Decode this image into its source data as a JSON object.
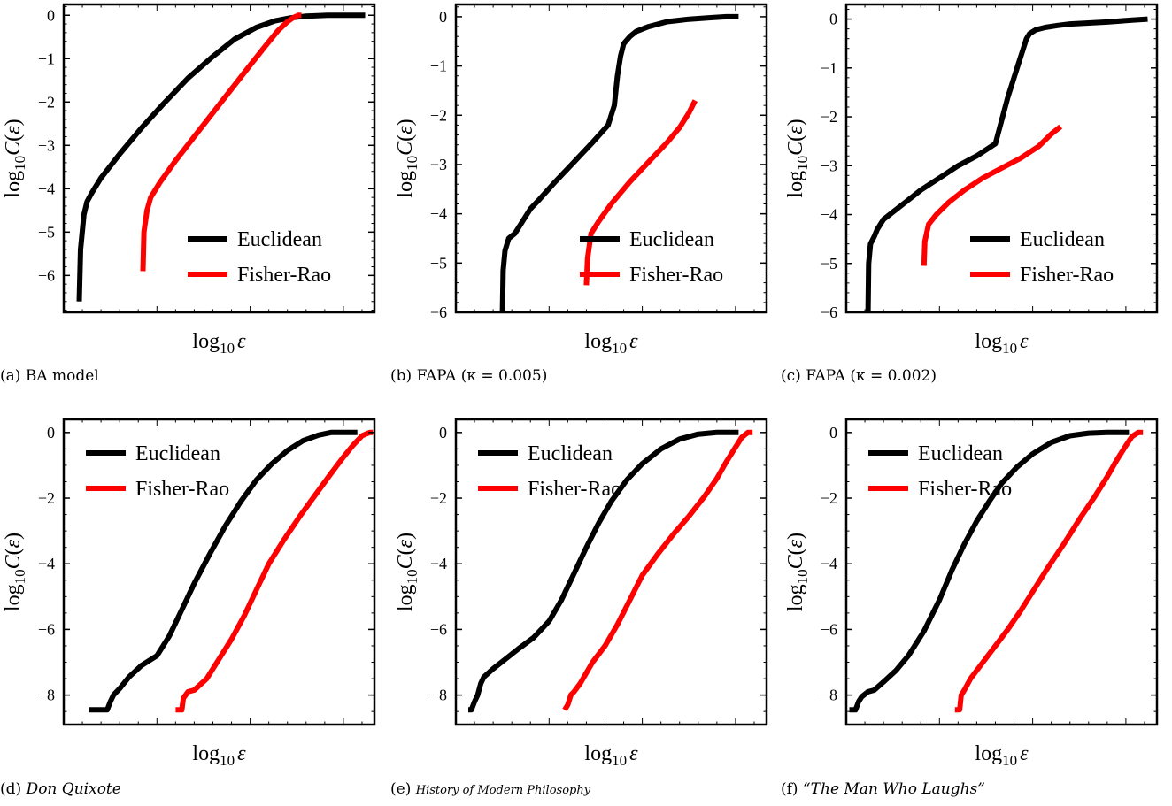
{
  "figure": {
    "captions": [
      {
        "prefix": "(a) ",
        "text": "BA model",
        "italic": false,
        "small": false
      },
      {
        "prefix": "(b) ",
        "text": "FAPA (κ = 0.005)",
        "italic": false,
        "small": false
      },
      {
        "prefix": "(c) ",
        "text": "FAPA (κ = 0.002)",
        "italic": false,
        "small": false
      },
      {
        "prefix": "(d) ",
        "text": "Don Quixote",
        "italic": true,
        "small": false
      },
      {
        "prefix": "(e) ",
        "text": "History of Modern Philosophy",
        "italic": true,
        "small": true
      },
      {
        "prefix": "(f) ",
        "text": "“The Man Who Laughs”",
        "italic": true,
        "small": false
      }
    ]
  },
  "colors": {
    "euclidean": "#000000",
    "fisher_rao": "#ff0000"
  },
  "chart_data": [
    {
      "type": "line",
      "xlabel": "log₁₀ ε",
      "ylabel": "log₁₀ C(ε)",
      "x_ticks_labeled": false,
      "xlim": [
        0,
        100
      ],
      "ylim": [
        -6.85,
        0.25
      ],
      "y_ticks": [
        0,
        -1,
        -2,
        -3,
        -4,
        -5,
        -6
      ],
      "y_tick_labels": [
        "0",
        "−1",
        "−2",
        "−3",
        "−4",
        "−5",
        "−6"
      ],
      "legend": "bottom-right",
      "series": [
        {
          "name": "Euclidean",
          "color": "#000000",
          "x": [
            5,
            5.4,
            6.5,
            7.5,
            9,
            12,
            18,
            25,
            32,
            40,
            48,
            55,
            62,
            68,
            73,
            78,
            85,
            92,
            97
          ],
          "y": [
            -6.6,
            -5.4,
            -4.6,
            -4.3,
            -4.1,
            -3.75,
            -3.2,
            -2.6,
            -2.05,
            -1.45,
            -0.95,
            -0.55,
            -0.28,
            -0.13,
            -0.06,
            -0.02,
            0,
            0,
            0
          ]
        },
        {
          "name": "Fisher-Rao",
          "color": "#ff0000",
          "x": [
            25.5,
            25.8,
            26.8,
            28,
            31,
            36,
            42,
            48,
            54,
            60,
            65,
            69,
            72,
            74,
            75.5,
            76.5
          ],
          "y": [
            -5.9,
            -5.0,
            -4.5,
            -4.2,
            -3.85,
            -3.35,
            -2.8,
            -2.25,
            -1.7,
            -1.15,
            -0.7,
            -0.35,
            -0.15,
            -0.05,
            0,
            0
          ]
        }
      ]
    },
    {
      "type": "line",
      "xlabel": "log₁₀ ε",
      "ylabel": "log₁₀ C(ε)",
      "x_ticks_labeled": false,
      "xlim": [
        0,
        100
      ],
      "ylim": [
        -6.0,
        0.25
      ],
      "y_ticks": [
        0,
        -1,
        -2,
        -3,
        -4,
        -5,
        -6
      ],
      "y_tick_labels": [
        "0",
        "−1",
        "−2",
        "−3",
        "−4",
        "−5",
        "−6"
      ],
      "legend": "bottom-right",
      "series": [
        {
          "name": "Euclidean",
          "color": "#000000",
          "x": [
            15,
            15.2,
            15.8,
            17,
            19,
            22,
            24,
            27,
            32,
            38,
            44,
            49,
            51,
            52,
            53,
            54,
            56,
            58,
            62,
            68,
            75,
            82,
            87,
            91
          ],
          "y": [
            -6.0,
            -5.15,
            -4.75,
            -4.5,
            -4.4,
            -4.1,
            -3.9,
            -3.7,
            -3.35,
            -2.95,
            -2.55,
            -2.2,
            -1.8,
            -1.2,
            -0.8,
            -0.55,
            -0.4,
            -0.3,
            -0.2,
            -0.1,
            -0.05,
            -0.02,
            0,
            0
          ]
        },
        {
          "name": "Fisher-Rao",
          "color": "#ff0000",
          "x": [
            42,
            42.4,
            43.5,
            46,
            50,
            56,
            62,
            68,
            72,
            75,
            77
          ],
          "y": [
            -5.45,
            -4.9,
            -4.4,
            -4.15,
            -3.8,
            -3.35,
            -2.95,
            -2.55,
            -2.25,
            -1.95,
            -1.7
          ]
        }
      ]
    },
    {
      "type": "line",
      "xlabel": "log₁₀ ε",
      "ylabel": "log₁₀ C(ε)",
      "x_ticks_labeled": false,
      "xlim": [
        0,
        100
      ],
      "ylim": [
        -6.0,
        0.3
      ],
      "y_ticks": [
        0,
        -1,
        -2,
        -3,
        -4,
        -5,
        -6
      ],
      "y_tick_labels": [
        "0",
        "−1",
        "−2",
        "−3",
        "−4",
        "−5",
        "−6"
      ],
      "legend": "bottom-right",
      "series": [
        {
          "name": "Euclidean",
          "color": "#000000",
          "x": [
            7,
            7.2,
            7.8,
            9,
            10,
            12,
            15,
            19,
            24,
            30,
            36,
            42,
            48,
            52,
            55,
            57,
            58,
            59,
            61,
            64,
            68,
            72,
            78,
            84,
            92,
            97
          ],
          "y": [
            -6.0,
            -5.0,
            -4.6,
            -4.45,
            -4.3,
            -4.1,
            -3.95,
            -3.75,
            -3.5,
            -3.25,
            -3.0,
            -2.8,
            -2.55,
            -1.6,
            -1.0,
            -0.6,
            -0.4,
            -0.3,
            -0.22,
            -0.17,
            -0.13,
            -0.1,
            -0.08,
            -0.06,
            -0.02,
            0
          ]
        },
        {
          "name": "Fisher-Rao",
          "color": "#ff0000",
          "x": [
            25,
            25.3,
            26.5,
            29,
            33,
            38,
            44,
            50,
            56,
            62,
            66,
            69
          ],
          "y": [
            -5.05,
            -4.55,
            -4.2,
            -4.0,
            -3.75,
            -3.5,
            -3.25,
            -3.05,
            -2.85,
            -2.6,
            -2.35,
            -2.2
          ]
        }
      ]
    },
    {
      "type": "line",
      "xlabel": "log₁₀ ε",
      "ylabel": "log₁₀ C(ε)",
      "x_ticks_labeled": false,
      "xlim": [
        0,
        100
      ],
      "ylim": [
        -8.9,
        0.4
      ],
      "y_ticks": [
        0,
        -2,
        -4,
        -6,
        -8
      ],
      "y_tick_labels": [
        "0",
        "−2",
        "−4",
        "−6",
        "−8"
      ],
      "legend": "top-left",
      "series": [
        {
          "name": "Euclidean",
          "color": "#000000",
          "x": [
            8,
            14,
            15,
            16,
            18,
            21,
            25,
            30,
            34,
            38,
            42,
            47,
            52,
            57,
            62,
            67,
            72,
            77,
            82,
            86,
            89,
            92,
            94.5
          ],
          "y": [
            -8.45,
            -8.45,
            -8.2,
            -8.0,
            -7.8,
            -7.45,
            -7.1,
            -6.8,
            -6.2,
            -5.4,
            -4.6,
            -3.7,
            -2.85,
            -2.1,
            -1.45,
            -0.95,
            -0.55,
            -0.25,
            -0.08,
            0,
            0,
            0,
            0
          ]
        },
        {
          "name": "Fisher-Rao",
          "color": "#ff0000",
          "x": [
            36,
            38,
            38.5,
            40,
            42,
            46,
            50,
            54,
            58,
            62,
            66,
            71,
            76,
            81,
            86,
            90,
            93,
            96,
            98.5,
            99.5
          ],
          "y": [
            -8.45,
            -8.45,
            -8.1,
            -7.9,
            -7.85,
            -7.5,
            -6.9,
            -6.3,
            -5.6,
            -4.8,
            -4.0,
            -3.25,
            -2.55,
            -1.9,
            -1.25,
            -0.75,
            -0.4,
            -0.1,
            0,
            0
          ]
        }
      ]
    },
    {
      "type": "line",
      "xlabel": "log₁₀ ε",
      "ylabel": "log₁₀ C(ε)",
      "x_ticks_labeled": false,
      "xlim": [
        0,
        100
      ],
      "ylim": [
        -8.9,
        0.4
      ],
      "y_ticks": [
        0,
        -2,
        -4,
        -6,
        -8
      ],
      "y_tick_labels": [
        "0",
        "−2",
        "−4",
        "−6",
        "−8"
      ],
      "legend": "top-left",
      "series": [
        {
          "name": "Euclidean",
          "color": "#000000",
          "x": [
            4,
            5,
            6,
            7,
            8,
            9,
            12,
            16,
            20,
            25,
            30,
            34,
            38,
            42,
            46,
            50,
            55,
            60,
            66,
            72,
            78,
            84,
            88,
            91
          ],
          "y": [
            -8.45,
            -8.45,
            -8.2,
            -8.0,
            -7.65,
            -7.45,
            -7.2,
            -6.9,
            -6.6,
            -6.25,
            -5.75,
            -5.1,
            -4.3,
            -3.5,
            -2.75,
            -2.1,
            -1.45,
            -0.95,
            -0.5,
            -0.2,
            -0.05,
            0,
            0,
            0
          ]
        },
        {
          "name": "Fisher-Rao",
          "color": "#ff0000",
          "x": [
            35,
            36,
            37,
            38,
            40,
            44,
            48,
            52,
            56,
            60,
            65,
            70,
            75,
            80,
            84,
            87,
            90,
            92,
            94,
            95.5
          ],
          "y": [
            -8.45,
            -8.3,
            -8.0,
            -7.9,
            -7.65,
            -7.0,
            -6.5,
            -5.85,
            -5.1,
            -4.35,
            -3.7,
            -3.1,
            -2.55,
            -1.95,
            -1.4,
            -0.9,
            -0.45,
            -0.15,
            0,
            0
          ]
        }
      ]
    },
    {
      "type": "line",
      "xlabel": "log₁₀ ε",
      "ylabel": "log₁₀ C(ε)",
      "x_ticks_labeled": false,
      "xlim": [
        0,
        100
      ],
      "ylim": [
        -8.9,
        0.4
      ],
      "y_ticks": [
        0,
        -2,
        -4,
        -6,
        -8
      ],
      "y_tick_labels": [
        "0",
        "−2",
        "−4",
        "−6",
        "−8"
      ],
      "legend": "top-left",
      "series": [
        {
          "name": "Euclidean",
          "color": "#000000",
          "x": [
            1,
            3,
            4,
            5,
            7,
            9,
            12,
            16,
            20,
            25,
            30,
            34,
            38,
            42,
            46,
            50,
            55,
            60,
            66,
            72,
            78,
            84,
            88,
            91
          ],
          "y": [
            -8.45,
            -8.45,
            -8.2,
            -8.05,
            -7.9,
            -7.85,
            -7.6,
            -7.25,
            -6.8,
            -6.05,
            -5.1,
            -4.2,
            -3.4,
            -2.7,
            -2.1,
            -1.55,
            -1.05,
            -0.65,
            -0.3,
            -0.1,
            -0.02,
            0,
            0,
            0
          ]
        },
        {
          "name": "Fisher-Rao",
          "color": "#ff0000",
          "x": [
            35,
            36.5,
            37,
            38,
            40,
            44,
            48,
            52,
            56,
            60,
            65,
            70,
            75,
            80,
            84,
            87,
            90,
            92,
            94,
            95.5
          ],
          "y": [
            -8.45,
            -8.45,
            -8.0,
            -7.85,
            -7.5,
            -7.0,
            -6.5,
            -6.0,
            -5.45,
            -4.85,
            -4.1,
            -3.4,
            -2.65,
            -1.95,
            -1.35,
            -0.85,
            -0.4,
            -0.12,
            0,
            0
          ]
        }
      ]
    }
  ]
}
